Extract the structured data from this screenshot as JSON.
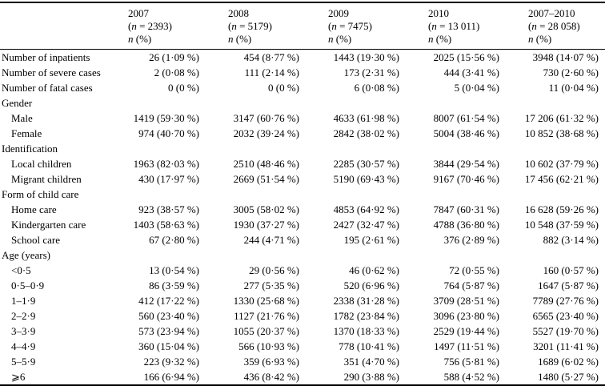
{
  "table": {
    "stat_line": "n (%)",
    "header": {
      "columns": [
        {
          "year": "2007",
          "n_line": "(n = 2393)",
          "stat_line": "n (%)"
        },
        {
          "year": "2008",
          "n_line": "(n = 5179)",
          "stat_line": "n (%)"
        },
        {
          "year": "2009",
          "n_line": "(n = 7475)",
          "stat_line": "n (%)"
        },
        {
          "year": "2010",
          "n_line": "(n = 13 011)",
          "stat_line": "n (%)"
        },
        {
          "year": "2007–2010",
          "n_line": "(n = 28 058)",
          "stat_line": "n (%)"
        }
      ]
    },
    "rows": [
      {
        "type": "data",
        "label": "Number of inpatients",
        "values": [
          "26 (1·09 %)",
          "454 (8·77 %)",
          "1443 (19·30 %)",
          "2025 (15·56 %)",
          "3948 (14·07 %)"
        ]
      },
      {
        "type": "data",
        "label": "Number of severe cases",
        "values": [
          "2 (0·08 %)",
          "111 (2·14 %)",
          "173 (2·31 %)",
          "444 (3·41 %)",
          "730 (2·60 %)"
        ]
      },
      {
        "type": "data",
        "label": "Number of fatal cases",
        "values": [
          "0 (0 %)",
          "0 (0 %)",
          "6 (0·08 %)",
          "5 (0·04 %)",
          "11 (0·04 %)"
        ]
      },
      {
        "type": "section",
        "label": "Gender"
      },
      {
        "type": "sub",
        "label": "Male",
        "values": [
          "1419 (59·30 %)",
          "3147 (60·76 %)",
          "4633 (61·98 %)",
          "8007 (61·54 %)",
          "17 206 (61·32 %)"
        ]
      },
      {
        "type": "sub",
        "label": "Female",
        "values": [
          "974 (40·70 %)",
          "2032 (39·24 %)",
          "2842 (38·02 %)",
          "5004 (38·46 %)",
          "10 852 (38·68 %)"
        ]
      },
      {
        "type": "section",
        "label": "Identification"
      },
      {
        "type": "sub",
        "label": "Local children",
        "values": [
          "1963 (82·03 %)",
          "2510 (48·46 %)",
          "2285 (30·57 %)",
          "3844 (29·54 %)",
          "10 602 (37·79 %)"
        ]
      },
      {
        "type": "sub",
        "label": "Migrant children",
        "values": [
          "430 (17·97 %)",
          "2669 (51·54 %)",
          "5190 (69·43 %)",
          "9167 (70·46 %)",
          "17 456 (62·21 %)"
        ]
      },
      {
        "type": "section",
        "label": "Form of child care"
      },
      {
        "type": "sub",
        "label": "Home care",
        "values": [
          "923 (38·57 %)",
          "3005 (58·02 %)",
          "4853 (64·92 %)",
          "7847 (60·31 %)",
          "16 628 (59·26 %)"
        ]
      },
      {
        "type": "sub",
        "label": "Kindergarten care",
        "values": [
          "1403 (58·63 %)",
          "1930 (37·27 %)",
          "2427 (32·47 %)",
          "4788 (36·80 %)",
          "10 548 (37·59 %)"
        ]
      },
      {
        "type": "sub",
        "label": "School care",
        "values": [
          "67 (2·80 %)",
          "244 (4·71 %)",
          "195 (2·61 %)",
          "376 (2·89 %)",
          "882 (3·14 %)"
        ]
      },
      {
        "type": "section",
        "label": "Age (years)"
      },
      {
        "type": "sub",
        "label": "<0·5",
        "values": [
          "13 (0·54 %)",
          "29 (0·56 %)",
          "46 (0·62 %)",
          "72 (0·55 %)",
          "160 (0·57 %)"
        ]
      },
      {
        "type": "sub",
        "label": "0·5–0·9",
        "values": [
          "86 (3·59 %)",
          "277 (5·35 %)",
          "520 (6·96 %)",
          "764 (5·87 %)",
          "1647 (5·87 %)"
        ]
      },
      {
        "type": "sub",
        "label": "1–1·9",
        "values": [
          "412 (17·22 %)",
          "1330 (25·68 %)",
          "2338 (31·28 %)",
          "3709 (28·51 %)",
          "7789 (27·76 %)"
        ]
      },
      {
        "type": "sub",
        "label": "2–2·9",
        "values": [
          "560 (23·40 %)",
          "1127 (21·76 %)",
          "1782 (23·84 %)",
          "3096 (23·80 %)",
          "6565 (23·40 %)"
        ]
      },
      {
        "type": "sub",
        "label": "3–3·9",
        "values": [
          "573 (23·94 %)",
          "1055 (20·37 %)",
          "1370 (18·33 %)",
          "2529 (19·44 %)",
          "5527 (19·70 %)"
        ]
      },
      {
        "type": "sub",
        "label": "4–4·9",
        "values": [
          "360 (15·04 %)",
          "566 (10·93 %)",
          "778 (10·41 %)",
          "1497 (11·51 %)",
          "3201 (11·41 %)"
        ]
      },
      {
        "type": "sub",
        "label": "5–5·9",
        "values": [
          "223 (9·32 %)",
          "359 (6·93 %)",
          "351 (4·70 %)",
          "756 (5·81 %)",
          "1689 (6·02 %)"
        ]
      },
      {
        "type": "sub",
        "label": "⩾6",
        "values": [
          "166 (6·94 %)",
          "436 (8·42 %)",
          "290 (3·88 %)",
          "588 (4·52 %)",
          "1480 (5·27 %)"
        ]
      }
    ]
  }
}
